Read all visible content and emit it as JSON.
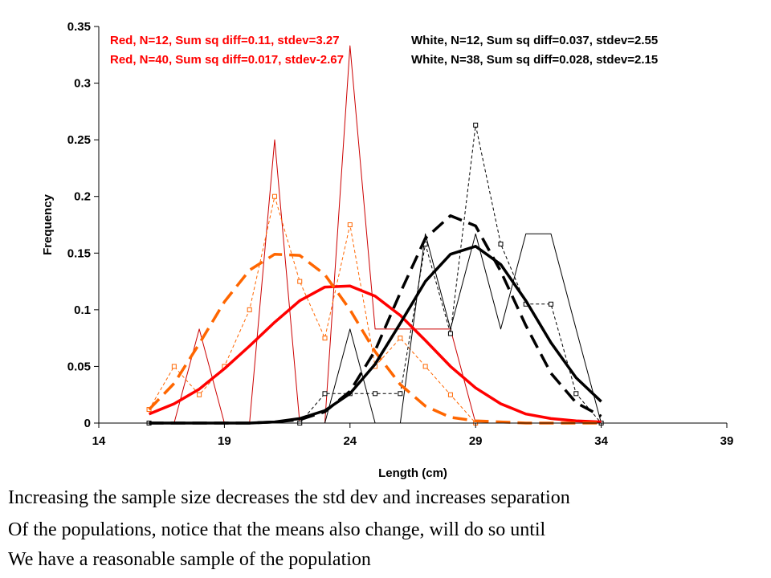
{
  "chart_data": {
    "type": "line",
    "xlabel": "Length (cm)",
    "ylabel": "Frequency",
    "xlim": [
      14,
      39
    ],
    "ylim": [
      0,
      0.35
    ],
    "x_ticks": [
      "14",
      "19",
      "24",
      "29",
      "34",
      "39"
    ],
    "y_ticks": [
      "0",
      "0.05",
      "0.1",
      "0.15",
      "0.2",
      "0.25",
      "0.3",
      "0.35"
    ],
    "grid": false,
    "legend_texts": [
      {
        "text": "Red, N=12, Sum sq diff=0.11, stdev=3.27",
        "color": "#ff0000"
      },
      {
        "text": "Red, N=40, Sum sq diff=0.017, stdev-2.67",
        "color": "#ff0000"
      },
      {
        "text": "White, N=12, Sum sq diff=0.037, stdev=2.55",
        "color": "#000000"
      },
      {
        "text": "White, N=38, Sum sq diff=0.028, stdev=2.15",
        "color": "#000000"
      }
    ],
    "series": [
      {
        "color": "#cc0000",
        "style": "thin-solid",
        "x": [
          16,
          17,
          18,
          19,
          20,
          21,
          22,
          23,
          24,
          25,
          26,
          27,
          28,
          29
        ],
        "y": [
          0,
          0,
          0.083,
          0,
          0,
          0.25,
          0,
          0,
          0.333,
          0.083,
          0.083,
          0.083,
          0.083,
          0
        ]
      },
      {
        "color": "#ff6600",
        "style": "thin-dashed-square-markers",
        "x": [
          16,
          17,
          18,
          19,
          20,
          21,
          22,
          23,
          24,
          25,
          26,
          27,
          28,
          29
        ],
        "y": [
          0.012,
          0.05,
          0.025,
          0.05,
          0.1,
          0.2,
          0.125,
          0.075,
          0.175,
          0.05,
          0.075,
          0.05,
          0.025,
          0
        ]
      },
      {
        "color": "#000000",
        "style": "thin-solid",
        "x": [
          22,
          23,
          24,
          25,
          26,
          27,
          28,
          29,
          30,
          31,
          32,
          33,
          34
        ],
        "y": [
          0,
          0,
          0.083,
          0,
          0,
          0.167,
          0.083,
          0.167,
          0.083,
          0.167,
          0.167,
          0.083,
          0
        ]
      },
      {
        "color": "#000000",
        "style": "thin-dashed-square-markers",
        "x": [
          16,
          22,
          23,
          24,
          25,
          26,
          27,
          28,
          29,
          30,
          31,
          32,
          33,
          34
        ],
        "y": [
          0,
          0,
          0.026,
          0.026,
          0.026,
          0.026,
          0.158,
          0.079,
          0.263,
          0.158,
          0.105,
          0.105,
          0.026,
          0
        ]
      },
      {
        "color": "#ff0000",
        "style": "thick-solid",
        "x": [
          16,
          17,
          18,
          19,
          20,
          21,
          22,
          23,
          24,
          25,
          26,
          27,
          28,
          29,
          30,
          31,
          32,
          33,
          34
        ],
        "y": [
          0.008,
          0.017,
          0.03,
          0.048,
          0.068,
          0.089,
          0.108,
          0.12,
          0.121,
          0.112,
          0.095,
          0.073,
          0.05,
          0.031,
          0.017,
          0.008,
          0.004,
          0.002,
          0.001
        ]
      },
      {
        "color": "#ff6600",
        "style": "thick-long-dash",
        "x": [
          16,
          17,
          18,
          19,
          20,
          21,
          22,
          23,
          24,
          25,
          26,
          27,
          28,
          29,
          30,
          31,
          32,
          33,
          34
        ],
        "y": [
          0.012,
          0.035,
          0.07,
          0.107,
          0.135,
          0.149,
          0.148,
          0.131,
          0.1,
          0.063,
          0.034,
          0.015,
          0.005,
          0.002,
          0.001,
          0,
          0,
          0,
          0
        ]
      },
      {
        "color": "#000000",
        "style": "thick-solid",
        "x": [
          16,
          17,
          18,
          19,
          20,
          21,
          22,
          23,
          24,
          25,
          26,
          27,
          28,
          29,
          30,
          31,
          32,
          33,
          34
        ],
        "y": [
          0,
          0,
          0,
          0,
          0,
          0.001,
          0.004,
          0.011,
          0.026,
          0.052,
          0.088,
          0.125,
          0.149,
          0.156,
          0.14,
          0.108,
          0.071,
          0.04,
          0.019
        ]
      },
      {
        "color": "#000000",
        "style": "thick-long-dash",
        "x": [
          16,
          17,
          18,
          19,
          20,
          21,
          22,
          23,
          24,
          25,
          26,
          27,
          28,
          29,
          30,
          31,
          32,
          33,
          34
        ],
        "y": [
          0,
          0,
          0,
          0,
          0,
          0.001,
          0.003,
          0.01,
          0.028,
          0.064,
          0.115,
          0.163,
          0.183,
          0.174,
          0.134,
          0.086,
          0.044,
          0.018,
          0.006
        ]
      }
    ]
  },
  "caption": {
    "line1": "Increasing the sample size decreases the std dev and increases separation",
    "line2": "Of the populations, notice that the means also change, will do so until",
    "line3": "We have a reasonable sample of the population"
  }
}
